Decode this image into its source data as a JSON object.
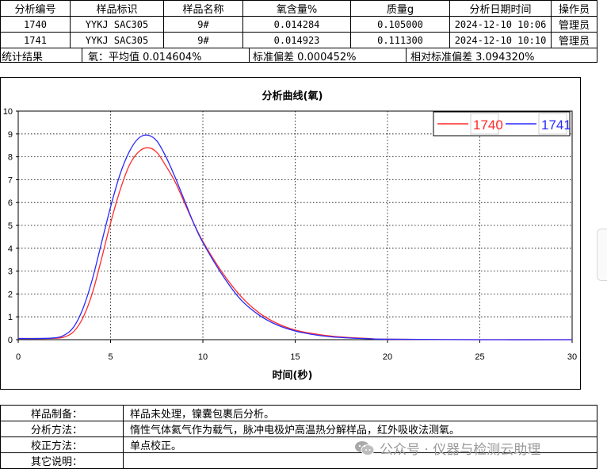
{
  "results_table": {
    "headers": [
      "分析编号",
      "样品标识",
      "样品名称",
      "氧含量%",
      "质量g",
      "分析日期时间",
      "操作员"
    ],
    "rows": [
      [
        "1740",
        "YYKJ SAC305",
        "9#",
        "0.014284",
        "0.105000",
        "2024-12-10 10:06",
        "管理员"
      ],
      [
        "1741",
        "YYKJ SAC305",
        "9#",
        "0.014923",
        "0.111300",
        "2024-12-10 10:10",
        "管理员"
      ]
    ]
  },
  "stats": {
    "label": "统计结果",
    "mean": "氧：平均值 0.014604%",
    "std": "标准偏差 0.000452%",
    "rsd": "相对标准偏差 3.094320%"
  },
  "chart_data": {
    "type": "line",
    "title": "分析曲线(氧)",
    "xlabel": "时间(秒)",
    "ylabel": "",
    "xlim": [
      0,
      30
    ],
    "ylim": [
      0,
      10
    ],
    "x_ticks": [
      0,
      5,
      10,
      15,
      20,
      25,
      30
    ],
    "y_ticks": [
      0,
      1,
      2,
      3,
      4,
      5,
      6,
      7,
      8,
      9,
      10
    ],
    "grid": true,
    "legend_position": "top-right",
    "x": [
      0,
      1,
      2,
      2.5,
      3,
      3.5,
      4,
      4.5,
      5,
      5.5,
      6,
      6.5,
      7,
      7.5,
      8,
      8.5,
      9,
      9.5,
      10,
      11,
      12,
      13,
      14,
      15,
      16,
      17,
      18,
      19,
      20,
      25,
      30
    ],
    "series": [
      {
        "name": "1740",
        "color": "#ff2a2a",
        "values": [
          0.05,
          0.05,
          0.06,
          0.12,
          0.35,
          0.95,
          2.0,
          3.5,
          5.1,
          6.5,
          7.6,
          8.2,
          8.4,
          8.2,
          7.6,
          6.9,
          6.0,
          5.1,
          4.3,
          3.0,
          1.95,
          1.2,
          0.72,
          0.42,
          0.26,
          0.15,
          0.09,
          0.05,
          0.02,
          0.0,
          0.0
        ]
      },
      {
        "name": "1741",
        "color": "#2a2aff",
        "values": [
          0.05,
          0.05,
          0.08,
          0.2,
          0.55,
          1.35,
          2.6,
          4.2,
          5.8,
          7.2,
          8.2,
          8.8,
          8.95,
          8.7,
          8.0,
          7.1,
          6.1,
          5.1,
          4.25,
          2.9,
          1.8,
          1.1,
          0.65,
          0.38,
          0.22,
          0.12,
          0.07,
          0.04,
          0.02,
          0.0,
          0.0
        ]
      }
    ]
  },
  "notes": [
    {
      "label": "样品制备：",
      "value": "样品未处理，镍囊包裹后分析。"
    },
    {
      "label": "分析方法：",
      "value": "惰性气体氦气作为载气，脉冲电极炉高温热分解样品，红外吸收法测氧。"
    },
    {
      "label": "校正方法：",
      "value": "单点校正。"
    },
    {
      "label": "其它说明：",
      "value": ""
    }
  ],
  "watermark": "公众号 · 仪器与检测云助理",
  "icons": {
    "watermark_icon": "wechat-icon"
  }
}
